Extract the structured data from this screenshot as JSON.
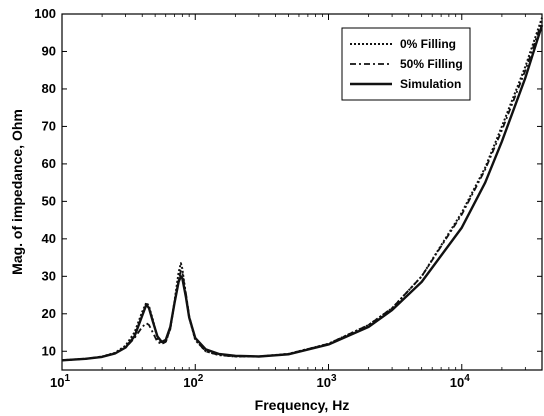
{
  "chart_data": {
    "type": "line",
    "xlabel": "Frequency, Hz",
    "ylabel": "Mag. of impedance, Ohm",
    "xscale": "log",
    "xlim": [
      10,
      40000
    ],
    "ylim": [
      5,
      100
    ],
    "xticks": [
      {
        "value": 10,
        "base": "10",
        "exp": "1"
      },
      {
        "value": 100,
        "base": "10",
        "exp": "2"
      },
      {
        "value": 1000,
        "base": "10",
        "exp": "3"
      },
      {
        "value": 10000,
        "base": "10",
        "exp": "4"
      }
    ],
    "yticks": [
      10,
      20,
      30,
      40,
      50,
      60,
      70,
      80,
      90,
      100
    ],
    "grid": false,
    "legend": "top-right",
    "series": [
      {
        "name": "0% Filling",
        "style": "dotted",
        "x": [
          10,
          15,
          20,
          25,
          30,
          35,
          40,
          43,
          45,
          48,
          52,
          56,
          60,
          65,
          70,
          75,
          78,
          80,
          85,
          90,
          100,
          120,
          150,
          200,
          300,
          500,
          1000,
          2000,
          3000,
          5000,
          10000,
          15000,
          20000,
          30000,
          40000
        ],
        "y": [
          7.6,
          8.0,
          8.6,
          9.6,
          11.5,
          15.0,
          20.5,
          23.0,
          22.0,
          18.5,
          13.5,
          12.0,
          12.5,
          16.0,
          23.5,
          31.0,
          33.5,
          32.0,
          25.0,
          19.0,
          13.0,
          10.0,
          9.0,
          8.6,
          8.6,
          9.3,
          12.0,
          17.0,
          21.5,
          30.0,
          47.0,
          59.0,
          70.0,
          86.0,
          99.0
        ]
      },
      {
        "name": "50% Filling",
        "style": "dashdot",
        "x": [
          10,
          15,
          20,
          25,
          30,
          35,
          40,
          43,
          45,
          48,
          52,
          56,
          60,
          65,
          70,
          75,
          78,
          80,
          85,
          90,
          100,
          120,
          150,
          200,
          300,
          500,
          1000,
          2000,
          3000,
          5000,
          10000,
          15000,
          20000,
          30000,
          40000
        ],
        "y": [
          7.6,
          8.0,
          8.6,
          9.5,
          11.0,
          13.5,
          16.5,
          17.5,
          17.0,
          15.0,
          12.5,
          12.0,
          12.5,
          16.0,
          23.0,
          29.0,
          31.5,
          31.0,
          25.5,
          19.5,
          13.0,
          10.0,
          9.0,
          8.6,
          8.6,
          9.3,
          12.0,
          17.0,
          21.5,
          30.0,
          46.5,
          58.5,
          69.0,
          85.0,
          98.0
        ]
      },
      {
        "name": "Simulation",
        "style": "solid",
        "x": [
          10,
          15,
          20,
          25,
          30,
          35,
          40,
          43,
          45,
          48,
          52,
          56,
          60,
          65,
          70,
          75,
          78,
          80,
          85,
          90,
          100,
          120,
          150,
          200,
          300,
          500,
          1000,
          2000,
          3000,
          5000,
          10000,
          15000,
          20000,
          30000,
          40000
        ],
        "y": [
          7.6,
          8.0,
          8.5,
          9.4,
          11.0,
          14.0,
          19.5,
          22.5,
          21.5,
          18.0,
          14.0,
          12.5,
          13.0,
          16.5,
          23.0,
          28.5,
          30.0,
          29.5,
          24.5,
          19.0,
          13.5,
          10.5,
          9.3,
          8.8,
          8.6,
          9.2,
          11.8,
          16.5,
          21.0,
          28.5,
          43.0,
          55.0,
          66.0,
          83.0,
          97.0
        ]
      }
    ]
  }
}
